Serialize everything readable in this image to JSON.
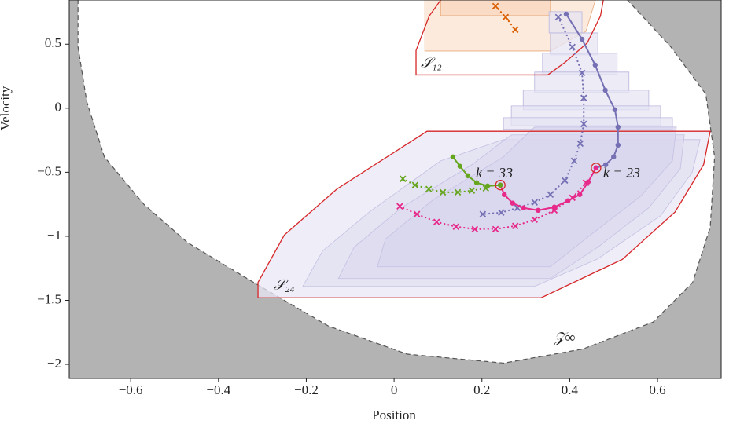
{
  "chart_data": {
    "type": "line",
    "x_label": "Position",
    "y_label": "Velocity",
    "xlim": [
      -0.74,
      0.745
    ],
    "ylim": [
      -2.11,
      0.845
    ],
    "xticks": [
      {
        "value": -0.6,
        "label": "−0.6"
      },
      {
        "value": -0.4,
        "label": "−0.4"
      },
      {
        "value": -0.2,
        "label": "−0.2"
      },
      0,
      0.2,
      0.4,
      0.6
    ],
    "yticks": [
      0.5,
      0,
      {
        "value": -0.5,
        "label": "−0.5"
      },
      {
        "value": -1,
        "label": "−1"
      },
      {
        "value": -1.5,
        "label": "−1.5"
      },
      {
        "value": -2,
        "label": "−2"
      }
    ],
    "outside_color": "#b3b3b3",
    "boundary": {
      "color": "#555555",
      "x": [
        -0.72,
        -0.72,
        -0.7,
        -0.66,
        -0.57,
        -0.47,
        -0.32,
        -0.15,
        0.03,
        0.25,
        0.43,
        0.59,
        0.68,
        0.72,
        0.73,
        0.71,
        0.63,
        0.53
      ],
      "y": [
        0.85,
        0.48,
        0.05,
        -0.38,
        -0.75,
        -1.05,
        -1.36,
        -1.7,
        -1.92,
        -1.99,
        -1.88,
        -1.67,
        -1.36,
        -0.93,
        -0.38,
        0.11,
        0.48,
        0.85
      ]
    },
    "regions": [
      {
        "fill": "#fbe3d2",
        "stroke": "#e8a878",
        "x": [
          0.07,
          0.464,
          0.437,
          0.356,
          0.07
        ],
        "y": [
          0.907,
          0.907,
          0.6,
          0.447,
          0.447
        ]
      },
      {
        "fill": "#f8d6bd",
        "stroke": "#e8a878",
        "x": [
          0.106,
          0.356,
          0.356,
          0.106
        ],
        "y": [
          0.907,
          0.907,
          0.723,
          0.723
        ]
      },
      {
        "fill": "#e6e4f3",
        "stroke": "#b9b5dc",
        "x": [
          0.353,
          0.428,
          0.428,
          0.353
        ],
        "y": [
          0.754,
          0.754,
          0.588,
          0.588
        ]
      },
      {
        "fill": "#e6e4f3",
        "stroke": "#b9b5dc",
        "x": [
          0.356,
          0.464,
          0.464,
          0.356
        ],
        "y": [
          0.588,
          0.588,
          0.417,
          0.417
        ]
      },
      {
        "fill": "#e6e4f3",
        "stroke": "#b9b5dc",
        "x": [
          0.338,
          0.508,
          0.508,
          0.338
        ],
        "y": [
          0.429,
          0.429,
          0.263,
          0.263
        ]
      },
      {
        "fill": "#e6e4f3",
        "stroke": "#b9b5dc",
        "x": [
          0.32,
          0.535,
          0.535,
          0.32
        ],
        "y": [
          0.282,
          0.282,
          0.123,
          0.123
        ]
      },
      {
        "fill": "#e6e4f3",
        "stroke": "#b9b5dc",
        "x": [
          0.294,
          0.58,
          0.58,
          0.294
        ],
        "y": [
          0.141,
          0.141,
          -0.012,
          -0.012
        ]
      },
      {
        "fill": "#e6e4f3",
        "stroke": "#b9b5dc",
        "x": [
          0.267,
          0.607,
          0.607,
          0.267
        ],
        "y": [
          0.018,
          0.018,
          -0.135,
          -0.135
        ]
      },
      {
        "fill": "#e6e4f3",
        "stroke": "#b9b5dc",
        "x": [
          0.249,
          0.634,
          0.634,
          0.249
        ],
        "y": [
          -0.074,
          -0.074,
          -0.165,
          -0.165
        ]
      },
      {
        "fill": "#e9e7f5",
        "stroke": "#c3bfe2",
        "x": [
          -0.31,
          -0.31,
          -0.25,
          -0.13,
          0.075,
          0.72,
          0.705,
          0.64,
          0.52,
          0.335
        ],
        "y": [
          -1.48,
          -1.36,
          -0.99,
          -0.63,
          -0.18,
          -0.18,
          -0.44,
          -0.81,
          -1.18,
          -1.48
        ]
      },
      {
        "fill": "#e2e0f2",
        "stroke": "#c3bfe2",
        "x": [
          -0.208,
          -0.163,
          -0.056,
          0.106,
          0.249,
          0.697,
          0.679,
          0.607,
          0.464,
          0.32
        ],
        "y": [
          -1.391,
          -1.115,
          -0.809,
          -0.411,
          -0.245,
          -0.245,
          -0.502,
          -0.839,
          -1.176,
          -1.391
        ]
      },
      {
        "fill": "#dddbf0",
        "stroke": "#c3bfe2",
        "x": [
          -0.127,
          -0.091,
          0.016,
          0.177,
          0.267,
          0.661,
          0.652,
          0.58,
          0.464,
          0.356
        ],
        "y": [
          -1.33,
          -1.085,
          -0.778,
          -0.441,
          -0.208,
          -0.208,
          -0.472,
          -0.778,
          -1.085,
          -1.33
        ]
      },
      {
        "fill": "#d8d6ee",
        "stroke": "#c3bfe2",
        "x": [
          -0.038,
          -0.02,
          0.088,
          0.249,
          0.32,
          0.643,
          0.634,
          0.562,
          0.446,
          0.356
        ],
        "y": [
          -1.238,
          -1.023,
          -0.717,
          -0.38,
          -0.147,
          -0.147,
          -0.411,
          -0.686,
          -0.993,
          -1.238
        ]
      }
    ],
    "outlines": [
      {
        "stroke": "#d62728",
        "x": [
          0.05,
          0.05,
          0.08,
          0.12,
          0.48,
          0.47,
          0.44,
          0.39,
          0.35
        ],
        "y": [
          0.26,
          0.45,
          0.72,
          0.91,
          0.91,
          0.72,
          0.51,
          0.36,
          0.26
        ]
      },
      {
        "stroke": "#d62728",
        "x": [
          -0.31,
          -0.31,
          -0.25,
          -0.13,
          0.075,
          0.72,
          0.705,
          0.64,
          0.52,
          0.335
        ],
        "y": [
          -1.48,
          -1.36,
          -0.99,
          -0.63,
          -0.18,
          -0.18,
          -0.44,
          -0.81,
          -1.18,
          -1.48
        ]
      }
    ],
    "series": [
      {
        "color": "#d95f02",
        "style": "dotted",
        "marker": "x",
        "x": [
          0.231,
          0.254,
          0.276
        ],
        "values": [
          0.797,
          0.711,
          0.613
        ]
      },
      {
        "color": "#7570b3",
        "style": "dotted",
        "marker": "x",
        "x": [
          0.374,
          0.406,
          0.428,
          0.432,
          0.432,
          0.424,
          0.41,
          0.389,
          0.356,
          0.32,
          0.281,
          0.244,
          0.202
        ],
        "values": [
          0.711,
          0.478,
          0.276,
          0.08,
          -0.123,
          -0.276,
          -0.411,
          -0.564,
          -0.674,
          -0.735,
          -0.778,
          -0.815,
          -0.827
        ]
      },
      {
        "color": "#e7298a",
        "style": "dotted",
        "marker": "x",
        "x": [
          0.013,
          0.052,
          0.097,
          0.141,
          0.184,
          0.231,
          0.276,
          0.32,
          0.365,
          0.406,
          0.437
        ],
        "values": [
          -0.766,
          -0.827,
          -0.888,
          -0.925,
          -0.944,
          -0.944,
          -0.919,
          -0.87,
          -0.797,
          -0.699,
          -0.582
        ]
      },
      {
        "color": "#66a61e",
        "style": "dotted",
        "marker": "x",
        "x": [
          0.02,
          0.048,
          0.079,
          0.111,
          0.145,
          0.177,
          0.209
        ],
        "values": [
          -0.551,
          -0.6,
          -0.631,
          -0.656,
          -0.656,
          -0.643,
          -0.625
        ]
      },
      {
        "color": "#7570b3",
        "style": "solid",
        "marker": "o",
        "x": [
          0.392,
          0.428,
          0.458,
          0.481,
          0.503,
          0.51,
          0.51,
          0.5,
          0.482,
          0.46
        ],
        "values": [
          0.735,
          0.539,
          0.337,
          0.141,
          -0.012,
          -0.147,
          -0.288,
          -0.38,
          -0.441,
          -0.466
        ]
      },
      {
        "color": "#e7298a",
        "style": "solid",
        "marker": "o",
        "x": [
          0.46,
          0.442,
          0.423,
          0.396,
          0.365,
          0.328,
          0.295,
          0.27,
          0.251,
          0.242
        ],
        "values": [
          -0.466,
          -0.576,
          -0.674,
          -0.723,
          -0.772,
          -0.797,
          -0.778,
          -0.741,
          -0.674,
          -0.6
        ]
      },
      {
        "color": "#66a61e",
        "style": "solid",
        "marker": "o",
        "x": [
          0.242,
          0.213,
          0.188,
          0.168,
          0.15,
          0.134
        ],
        "values": [
          -0.6,
          -0.607,
          -0.582,
          -0.527,
          -0.453,
          -0.38
        ]
      }
    ],
    "highlights": [
      {
        "color": "#d62728",
        "x": 0.242,
        "y": -0.6
      },
      {
        "color": "#d62728",
        "x": 0.46,
        "y": -0.466
      }
    ],
    "annotations": [
      {
        "text": "k = 33",
        "color": "#d62728",
        "x": 0.186,
        "y": -0.515
      },
      {
        "text": "k = 23",
        "color": "#d62728",
        "x": 0.476,
        "y": -0.515
      },
      {
        "text": "𝒮₁₂",
        "color": "#c56a1a",
        "x": 0.061,
        "y": 0.343
      },
      {
        "text": "𝒮₂₄",
        "color": "#7570b3",
        "x": -0.274,
        "y": -1.39
      },
      {
        "text": "𝒵∞",
        "color": "#777777",
        "x": 0.365,
        "y": -1.8
      }
    ]
  }
}
